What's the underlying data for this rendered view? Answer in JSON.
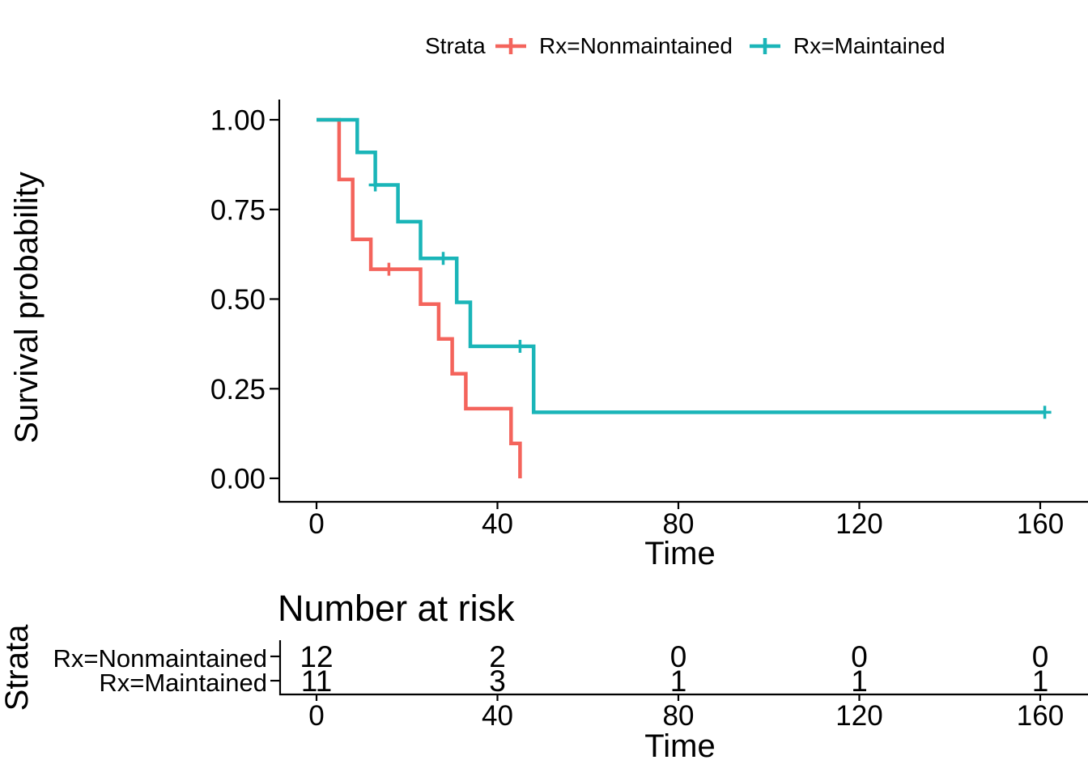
{
  "legend": {
    "title": "Strata",
    "items": [
      {
        "label": "Rx=Nonmaintained",
        "color": "#F4645C"
      },
      {
        "label": "Rx=Maintained",
        "color": "#1AB5B8"
      }
    ]
  },
  "chart_data": {
    "type": "line",
    "subtype": "kaplan-meier-step-survival",
    "xlabel": "Time",
    "ylabel": "Survival probability",
    "xlim": [
      0,
      168
    ],
    "ylim": [
      0.0,
      1.0
    ],
    "xticks": [
      0,
      40,
      80,
      120,
      160
    ],
    "xtick_labels": [
      "0",
      "40",
      "80",
      "120",
      "160"
    ],
    "ytick_labels": [
      "1.00",
      "0.75",
      "0.50",
      "0.25",
      "0.00"
    ],
    "grid": "off",
    "legend_position": "top",
    "series": [
      {
        "name": "Rx=Nonmaintained",
        "color": "#F4645C",
        "points": [
          [
            0,
            1.0
          ],
          [
            5,
            0.8333
          ],
          [
            8,
            0.6667
          ],
          [
            12,
            0.5833
          ],
          [
            23,
            0.4861
          ],
          [
            27,
            0.3889
          ],
          [
            30,
            0.2917
          ],
          [
            33,
            0.1944
          ],
          [
            43,
            0.0972
          ],
          [
            45,
            0.0
          ]
        ],
        "censored": [
          [
            16,
            0.5833
          ]
        ]
      },
      {
        "name": "Rx=Maintained",
        "color": "#1AB5B8",
        "points": [
          [
            0,
            1.0
          ],
          [
            9,
            0.9091
          ],
          [
            13,
            0.8182
          ],
          [
            18,
            0.7159
          ],
          [
            23,
            0.6136
          ],
          [
            31,
            0.4909
          ],
          [
            34,
            0.3682
          ],
          [
            48,
            0.1841
          ],
          [
            161,
            0.1841
          ]
        ],
        "censored": [
          [
            13,
            0.8182
          ],
          [
            28,
            0.6136
          ],
          [
            45,
            0.3682
          ],
          [
            161,
            0.1841
          ]
        ]
      }
    ]
  },
  "risk_table": {
    "title": "Number at risk",
    "ylabel": "Strata",
    "xlabel": "Time",
    "xtick_labels": [
      "0",
      "40",
      "80",
      "120",
      "160"
    ],
    "rows": [
      {
        "label": "Rx=Nonmaintained",
        "color": "#F4645C",
        "values": [
          12,
          2,
          0,
          0,
          0
        ]
      },
      {
        "label": "Rx=Maintained",
        "color": "#1AB5B8",
        "values": [
          11,
          3,
          1,
          1,
          1
        ]
      }
    ]
  }
}
